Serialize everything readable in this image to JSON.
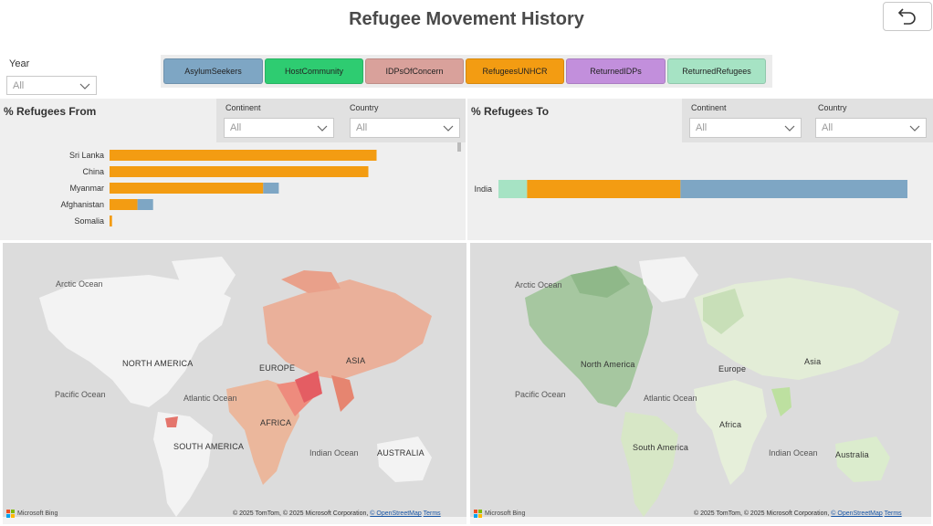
{
  "header": {
    "title": "Refugee Movement History"
  },
  "year_filter": {
    "label": "Year",
    "value": "All"
  },
  "legend": {
    "items": [
      {
        "label": "AsylumSeekers",
        "color": "#7ea6c4"
      },
      {
        "label": "HostCommunity",
        "color": "#2ecc71"
      },
      {
        "label": "IDPsOfConcern",
        "color": "#d9a19b"
      },
      {
        "label": "RefugeesUNHCR",
        "color": "#f39c12"
      },
      {
        "label": "ReturnedIDPs",
        "color": "#c28fdc"
      },
      {
        "label": "ReturnedRefugees",
        "color": "#a6e3c4"
      }
    ]
  },
  "from_panel": {
    "title": "% Refugees From",
    "continent_label": "Continent",
    "continent_value": "All",
    "country_label": "Country",
    "country_value": "All"
  },
  "to_panel": {
    "title": "% Refugees To",
    "continent_label": "Continent",
    "continent_value": "All",
    "country_label": "Country",
    "country_value": "All"
  },
  "chart_data": [
    {
      "type": "bar",
      "orientation": "horizontal",
      "stacked": true,
      "title": "% Refugees From",
      "categories": [
        "Sri Lanka",
        "China",
        "Myanmar",
        "Afghanistan",
        "Somalia"
      ],
      "series": [
        {
          "name": "RefugeesUNHCR",
          "color": "#f39c12",
          "values": [
            32.5,
            31.5,
            18.7,
            3.4,
            0.3
          ]
        },
        {
          "name": "AsylumSeekers",
          "color": "#7ea6c4",
          "values": [
            0,
            0,
            1.9,
            1.9,
            0
          ]
        }
      ],
      "xlim": [
        0,
        40
      ]
    },
    {
      "type": "bar",
      "orientation": "horizontal",
      "stacked": true,
      "title": "% Refugees To",
      "categories": [
        "India"
      ],
      "series": [
        {
          "name": "ReturnedRefugees",
          "color": "#a6e3c4",
          "values": [
            7
          ]
        },
        {
          "name": "RefugeesUNHCR",
          "color": "#f39c12",
          "values": [
            37.5
          ]
        },
        {
          "name": "AsylumSeekers",
          "color": "#7ea6c4",
          "values": [
            55.5
          ]
        }
      ],
      "xlim": [
        0,
        100
      ]
    }
  ],
  "map_left": {
    "labels": {
      "arctic": "Arctic Ocean",
      "pacific": "Pacific Ocean",
      "atlantic": "Atlantic Ocean",
      "indian": "Indian Ocean",
      "north_america": "NORTH AMERICA",
      "south_america": "SOUTH AMERICA",
      "europe": "EUROPE",
      "asia": "ASIA",
      "africa": "AFRICA",
      "australia": "AUSTRALIA"
    },
    "bing": "Microsoft Bing",
    "copyright": "© 2025 TomTom, © 2025 Microsoft Corporation,",
    "osm": "© OpenStreetMap",
    "terms": "Terms"
  },
  "map_right": {
    "labels": {
      "arctic": "Arctic Ocean",
      "pacific": "Pacific Ocean",
      "atlantic": "Atlantic Ocean",
      "indian": "Indian Ocean",
      "north_america": "North America",
      "south_america": "South America",
      "europe": "Europe",
      "asia": "Asia",
      "africa": "Africa",
      "australia": "Australia"
    },
    "bing": "Microsoft Bing",
    "copyright": "© 2025 TomTom, © 2025 Microsoft Corporation,",
    "osm": "© OpenStreetMap",
    "terms": "Terms"
  }
}
